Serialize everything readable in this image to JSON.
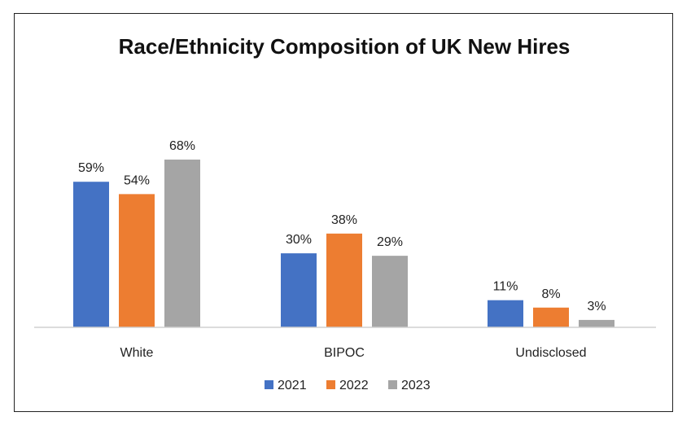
{
  "chart_data": {
    "type": "bar",
    "title": "Race/Ethnicity Composition of UK New Hires",
    "categories": [
      "White",
      "BIPOC",
      "Undisclosed"
    ],
    "series": [
      {
        "name": "2021",
        "color": "#4472C4",
        "values": [
          59,
          30,
          11
        ],
        "labels": [
          "59%",
          "30%",
          "11%"
        ]
      },
      {
        "name": "2022",
        "color": "#ED7D31",
        "values": [
          54,
          38,
          8
        ],
        "labels": [
          "54%",
          "38%",
          "8%"
        ]
      },
      {
        "name": "2023",
        "color": "#A5A5A5",
        "values": [
          68,
          29,
          3
        ],
        "labels": [
          "68%",
          "29%",
          "3%"
        ]
      }
    ],
    "ylim": [
      0,
      70
    ],
    "grid": false,
    "legend": "bottom"
  }
}
